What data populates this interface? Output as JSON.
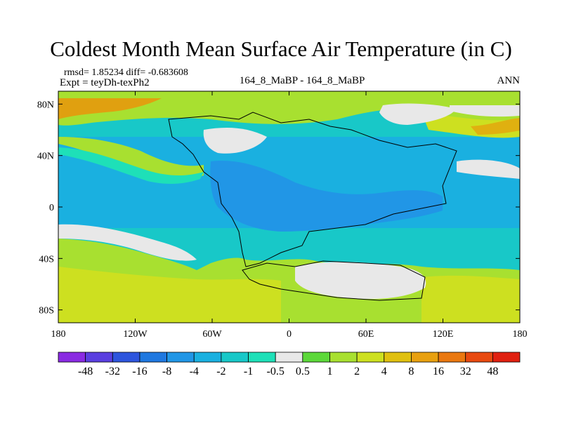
{
  "title": "Coldest Month Mean Surface Air Temperature (in C)",
  "stats_line": "rmsd= 1.85234 diff= -0.683608",
  "expt_line": "Expt = teyDh-texPh2",
  "comparison": "164_8_MaBP - 164_8_MaBP",
  "season": "ANN",
  "map": {
    "lon_range": [
      -180,
      180
    ],
    "lat_range": [
      -90,
      90
    ],
    "lon_ticks": [
      {
        "value": -180,
        "label": "180"
      },
      {
        "value": -120,
        "label": "120W"
      },
      {
        "value": -60,
        "label": "60W"
      },
      {
        "value": 0,
        "label": "0"
      },
      {
        "value": 60,
        "label": "60E"
      },
      {
        "value": 120,
        "label": "120E"
      },
      {
        "value": 180,
        "label": "180"
      }
    ],
    "lat_ticks": [
      {
        "value": 80,
        "label": "80N"
      },
      {
        "value": 40,
        "label": "40N"
      },
      {
        "value": 0,
        "label": "0"
      },
      {
        "value": -40,
        "label": "40S"
      },
      {
        "value": -80,
        "label": "80S"
      }
    ]
  },
  "colorbar": {
    "levels": [
      "-48",
      "-32",
      "-16",
      "-8",
      "-4",
      "-2",
      "-1",
      "-0.5",
      "0.5",
      "1",
      "2",
      "4",
      "8",
      "16",
      "32",
      "48"
    ],
    "colors": [
      "#8a2be2",
      "#5a3fe0",
      "#2e55dd",
      "#1f78e0",
      "#2196e6",
      "#1ab0e0",
      "#18c8c8",
      "#1ee0b8",
      "#e8e8e8",
      "#5cd83a",
      "#a8e030",
      "#cde020",
      "#e0c010",
      "#e8a010",
      "#ea7810",
      "#e84a10",
      "#e02010"
    ]
  }
}
